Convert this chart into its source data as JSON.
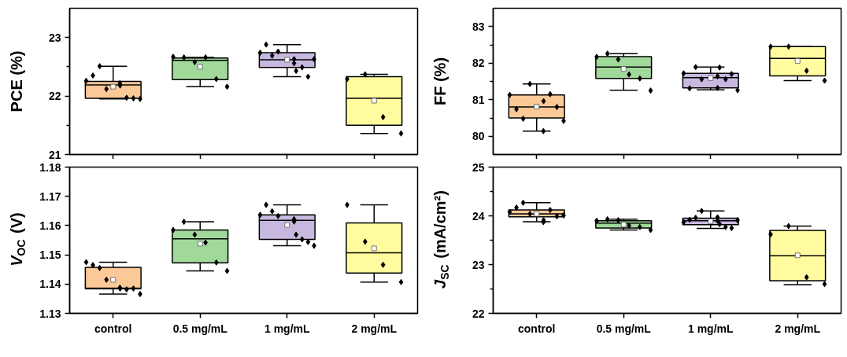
{
  "chart_data": [
    {
      "type": "box",
      "ylabel": "PCE (%)",
      "categories": [
        "control",
        "0.5 mg/mL",
        "1 mg/mL",
        "2 mg/mL"
      ],
      "tick_labels": "y",
      "ylim": [
        21,
        23.5
      ],
      "yticks": [
        21,
        {
          "value": 21.5,
          "label": null
        },
        22,
        {
          "value": 22.5,
          "label": null
        },
        23
      ],
      "colors": [
        "#fbc898",
        "#a1d99b",
        "#c7b8df",
        "#fffb9e"
      ],
      "boxes": [
        {
          "low": 21.95,
          "q1": 21.96,
          "median": 22.19,
          "q3": 22.25,
          "high": 22.51,
          "mean": 22.16
        },
        {
          "low": 22.16,
          "q1": 22.28,
          "median": 22.61,
          "q3": 22.65,
          "high": 22.66,
          "mean": 22.5
        },
        {
          "low": 22.33,
          "q1": 22.49,
          "median": 22.62,
          "q3": 22.74,
          "high": 22.88,
          "mean": 22.62
        },
        {
          "low": 21.36,
          "q1": 21.5,
          "median": 21.96,
          "q3": 22.33,
          "high": 22.37,
          "mean": 21.92
        }
      ],
      "series": [
        {
          "type": "scatter",
          "color": "#000000",
          "marker": "diamond",
          "x": [
            "control",
            "control",
            "control",
            "control",
            "control",
            "control",
            "control",
            "control",
            "control",
            "0.5 mg/mL",
            "0.5 mg/mL",
            "0.5 mg/mL",
            "0.5 mg/mL",
            "0.5 mg/mL",
            "0.5 mg/mL",
            "1 mg/mL",
            "1 mg/mL",
            "1 mg/mL",
            "1 mg/mL",
            "1 mg/mL",
            "1 mg/mL",
            "1 mg/mL",
            "1 mg/mL",
            "1 mg/mL",
            "1 mg/mL",
            "2 mg/mL",
            "2 mg/mL",
            "2 mg/mL",
            "2 mg/mL"
          ],
          "values": [
            22.26,
            22.35,
            22.51,
            22.12,
            22.18,
            22.22,
            21.97,
            21.96,
            21.95,
            22.67,
            22.66,
            22.58,
            22.66,
            22.29,
            22.16,
            22.74,
            22.88,
            22.69,
            22.76,
            22.63,
            22.56,
            22.43,
            22.49,
            22.33,
            22.63,
            22.29,
            22.37,
            21.64,
            21.36
          ]
        }
      ]
    },
    {
      "type": "box",
      "ylabel": "FF (%)",
      "categories": [
        "control",
        "0.5 mg/mL",
        "1 mg/mL",
        "2 mg/mL"
      ],
      "tick_labels": "y",
      "ylim": [
        79.5,
        83.5
      ],
      "yticks": [
        80,
        {
          "value": 80.5,
          "label": null
        },
        81,
        {
          "value": 81.5,
          "label": null
        },
        82,
        {
          "value": 82.5,
          "label": null
        },
        83
      ],
      "colors": [
        "#fbc898",
        "#a1d99b",
        "#c7b8df",
        "#fffb9e"
      ],
      "boxes": [
        {
          "low": 80.14,
          "q1": 80.5,
          "median": 80.8,
          "q3": 81.13,
          "high": 81.43,
          "mean": 80.81
        },
        {
          "low": 81.26,
          "q1": 81.58,
          "median": 81.89,
          "q3": 82.18,
          "high": 82.26,
          "mean": 81.84
        },
        {
          "low": 81.27,
          "q1": 81.32,
          "median": 81.6,
          "q3": 81.72,
          "high": 81.89,
          "mean": 81.59
        },
        {
          "low": 81.52,
          "q1": 81.65,
          "median": 82.13,
          "q3": 82.45,
          "high": 82.45,
          "mean": 82.06
        }
      ],
      "series": [
        {
          "type": "scatter",
          "color": "#000000",
          "marker": "diamond",
          "x": [
            "control",
            "control",
            "control",
            "control",
            "control",
            "control",
            "control",
            "control",
            "control",
            "0.5 mg/mL",
            "0.5 mg/mL",
            "0.5 mg/mL",
            "0.5 mg/mL",
            "0.5 mg/mL",
            "0.5 mg/mL",
            "1 mg/mL",
            "1 mg/mL",
            "1 mg/mL",
            "1 mg/mL",
            "1 mg/mL",
            "1 mg/mL",
            "1 mg/mL",
            "1 mg/mL",
            "1 mg/mL",
            "1 mg/mL",
            "2 mg/mL",
            "2 mg/mL",
            "2 mg/mL",
            "2 mg/mL"
          ],
          "values": [
            81.13,
            80.74,
            80.48,
            81.43,
            80.96,
            80.14,
            81.15,
            80.8,
            80.42,
            82.17,
            82.26,
            82.1,
            81.69,
            81.58,
            81.25,
            81.72,
            81.31,
            81.89,
            81.56,
            81.64,
            81.32,
            81.88,
            81.56,
            81.7,
            81.26,
            82.45,
            82.45,
            81.79,
            81.52
          ]
        }
      ]
    },
    {
      "type": "box",
      "ylabel": "V$_{OC}$ (V)",
      "categories": [
        "control",
        "0.5 mg/mL",
        "1 mg/mL",
        "2 mg/mL"
      ],
      "ylim": [
        1.13,
        1.18
      ],
      "yticks": [
        1.13,
        1.14,
        1.15,
        1.16,
        1.17,
        1.18
      ],
      "colors": [
        "#fbc898",
        "#a1d99b",
        "#c7b8df",
        "#fffb9e"
      ],
      "boxes": [
        {
          "low": 1.1366,
          "q1": 1.1384,
          "median": 1.1386,
          "q3": 1.1457,
          "high": 1.1475,
          "mean": 1.1415
        },
        {
          "low": 1.1445,
          "q1": 1.1473,
          "median": 1.1555,
          "q3": 1.1585,
          "high": 1.1613,
          "mean": 1.1538
        },
        {
          "low": 1.1531,
          "q1": 1.1553,
          "median": 1.1618,
          "q3": 1.1637,
          "high": 1.1671,
          "mean": 1.1602
        },
        {
          "low": 1.1407,
          "q1": 1.1438,
          "median": 1.1507,
          "q3": 1.1609,
          "high": 1.1671,
          "mean": 1.1522
        }
      ],
      "series": [
        {
          "type": "scatter",
          "color": "#000000",
          "marker": "diamond",
          "x": [
            "control",
            "control",
            "control",
            "control",
            "control",
            "control",
            "control",
            "control",
            "control",
            "0.5 mg/mL",
            "0.5 mg/mL",
            "0.5 mg/mL",
            "0.5 mg/mL",
            "0.5 mg/mL",
            "0.5 mg/mL",
            "1 mg/mL",
            "1 mg/mL",
            "1 mg/mL",
            "1 mg/mL",
            "1 mg/mL",
            "1 mg/mL",
            "1 mg/mL",
            "1 mg/mL",
            "1 mg/mL",
            "1 mg/mL",
            "2 mg/mL",
            "2 mg/mL",
            "2 mg/mL",
            "2 mg/mL"
          ],
          "values": [
            1.1475,
            1.1465,
            1.1455,
            1.1415,
            1.1385,
            1.1388,
            1.1382,
            1.1385,
            1.1366,
            1.1585,
            1.1613,
            1.1569,
            1.1542,
            1.1474,
            1.1445,
            1.1637,
            1.1671,
            1.1649,
            1.1633,
            1.1614,
            1.1622,
            1.1569,
            1.1553,
            1.1544,
            1.1531,
            1.1671,
            1.1545,
            1.1466,
            1.1407
          ]
        }
      ]
    },
    {
      "type": "box",
      "ylabel": "J$_{SC}$ (mA/cm²)",
      "categories": [
        "control",
        "0.5 mg/mL",
        "1 mg/mL",
        "2 mg/mL"
      ],
      "ylim": [
        22,
        25
      ],
      "yticks": [
        22,
        {
          "value": 22.5,
          "label": null
        },
        23,
        {
          "value": 23.5,
          "label": null
        },
        24,
        {
          "value": 24.5,
          "label": null
        },
        25
      ],
      "colors": [
        "#fbc898",
        "#a1d99b",
        "#c7b8df",
        "#fffb9e"
      ],
      "boxes": [
        {
          "low": 23.88,
          "q1": 23.98,
          "median": 24.04,
          "q3": 24.12,
          "high": 24.27,
          "mean": 24.04
        },
        {
          "low": 23.71,
          "q1": 23.75,
          "median": 23.85,
          "q3": 23.9,
          "high": 23.93,
          "mean": 23.82
        },
        {
          "low": 23.74,
          "q1": 23.82,
          "median": 23.9,
          "q3": 23.95,
          "high": 24.1,
          "mean": 23.89
        },
        {
          "low": 22.59,
          "q1": 22.67,
          "median": 23.18,
          "q3": 23.7,
          "high": 23.79,
          "mean": 23.19
        }
      ],
      "series": [
        {
          "type": "scatter",
          "color": "#000000",
          "marker": "diamond",
          "x": [
            "control",
            "control",
            "control",
            "control",
            "control",
            "control",
            "control",
            "control",
            "control",
            "0.5 mg/mL",
            "0.5 mg/mL",
            "0.5 mg/mL",
            "0.5 mg/mL",
            "0.5 mg/mL",
            "0.5 mg/mL",
            "1 mg/mL",
            "1 mg/mL",
            "1 mg/mL",
            "1 mg/mL",
            "1 mg/mL",
            "1 mg/mL",
            "1 mg/mL",
            "1 mg/mL",
            "1 mg/mL",
            "1 mg/mL",
            "2 mg/mL",
            "2 mg/mL",
            "2 mg/mL",
            "2 mg/mL"
          ],
          "values": [
            24.08,
            24.17,
            24.27,
            24.04,
            23.91,
            23.87,
            24.12,
            23.99,
            24.01,
            23.9,
            23.93,
            23.91,
            23.8,
            23.77,
            23.71,
            23.87,
            23.92,
            23.96,
            24.1,
            23.9,
            23.97,
            23.83,
            23.77,
            23.75,
            23.91,
            23.62,
            23.79,
            22.74,
            22.6
          ]
        }
      ]
    }
  ]
}
